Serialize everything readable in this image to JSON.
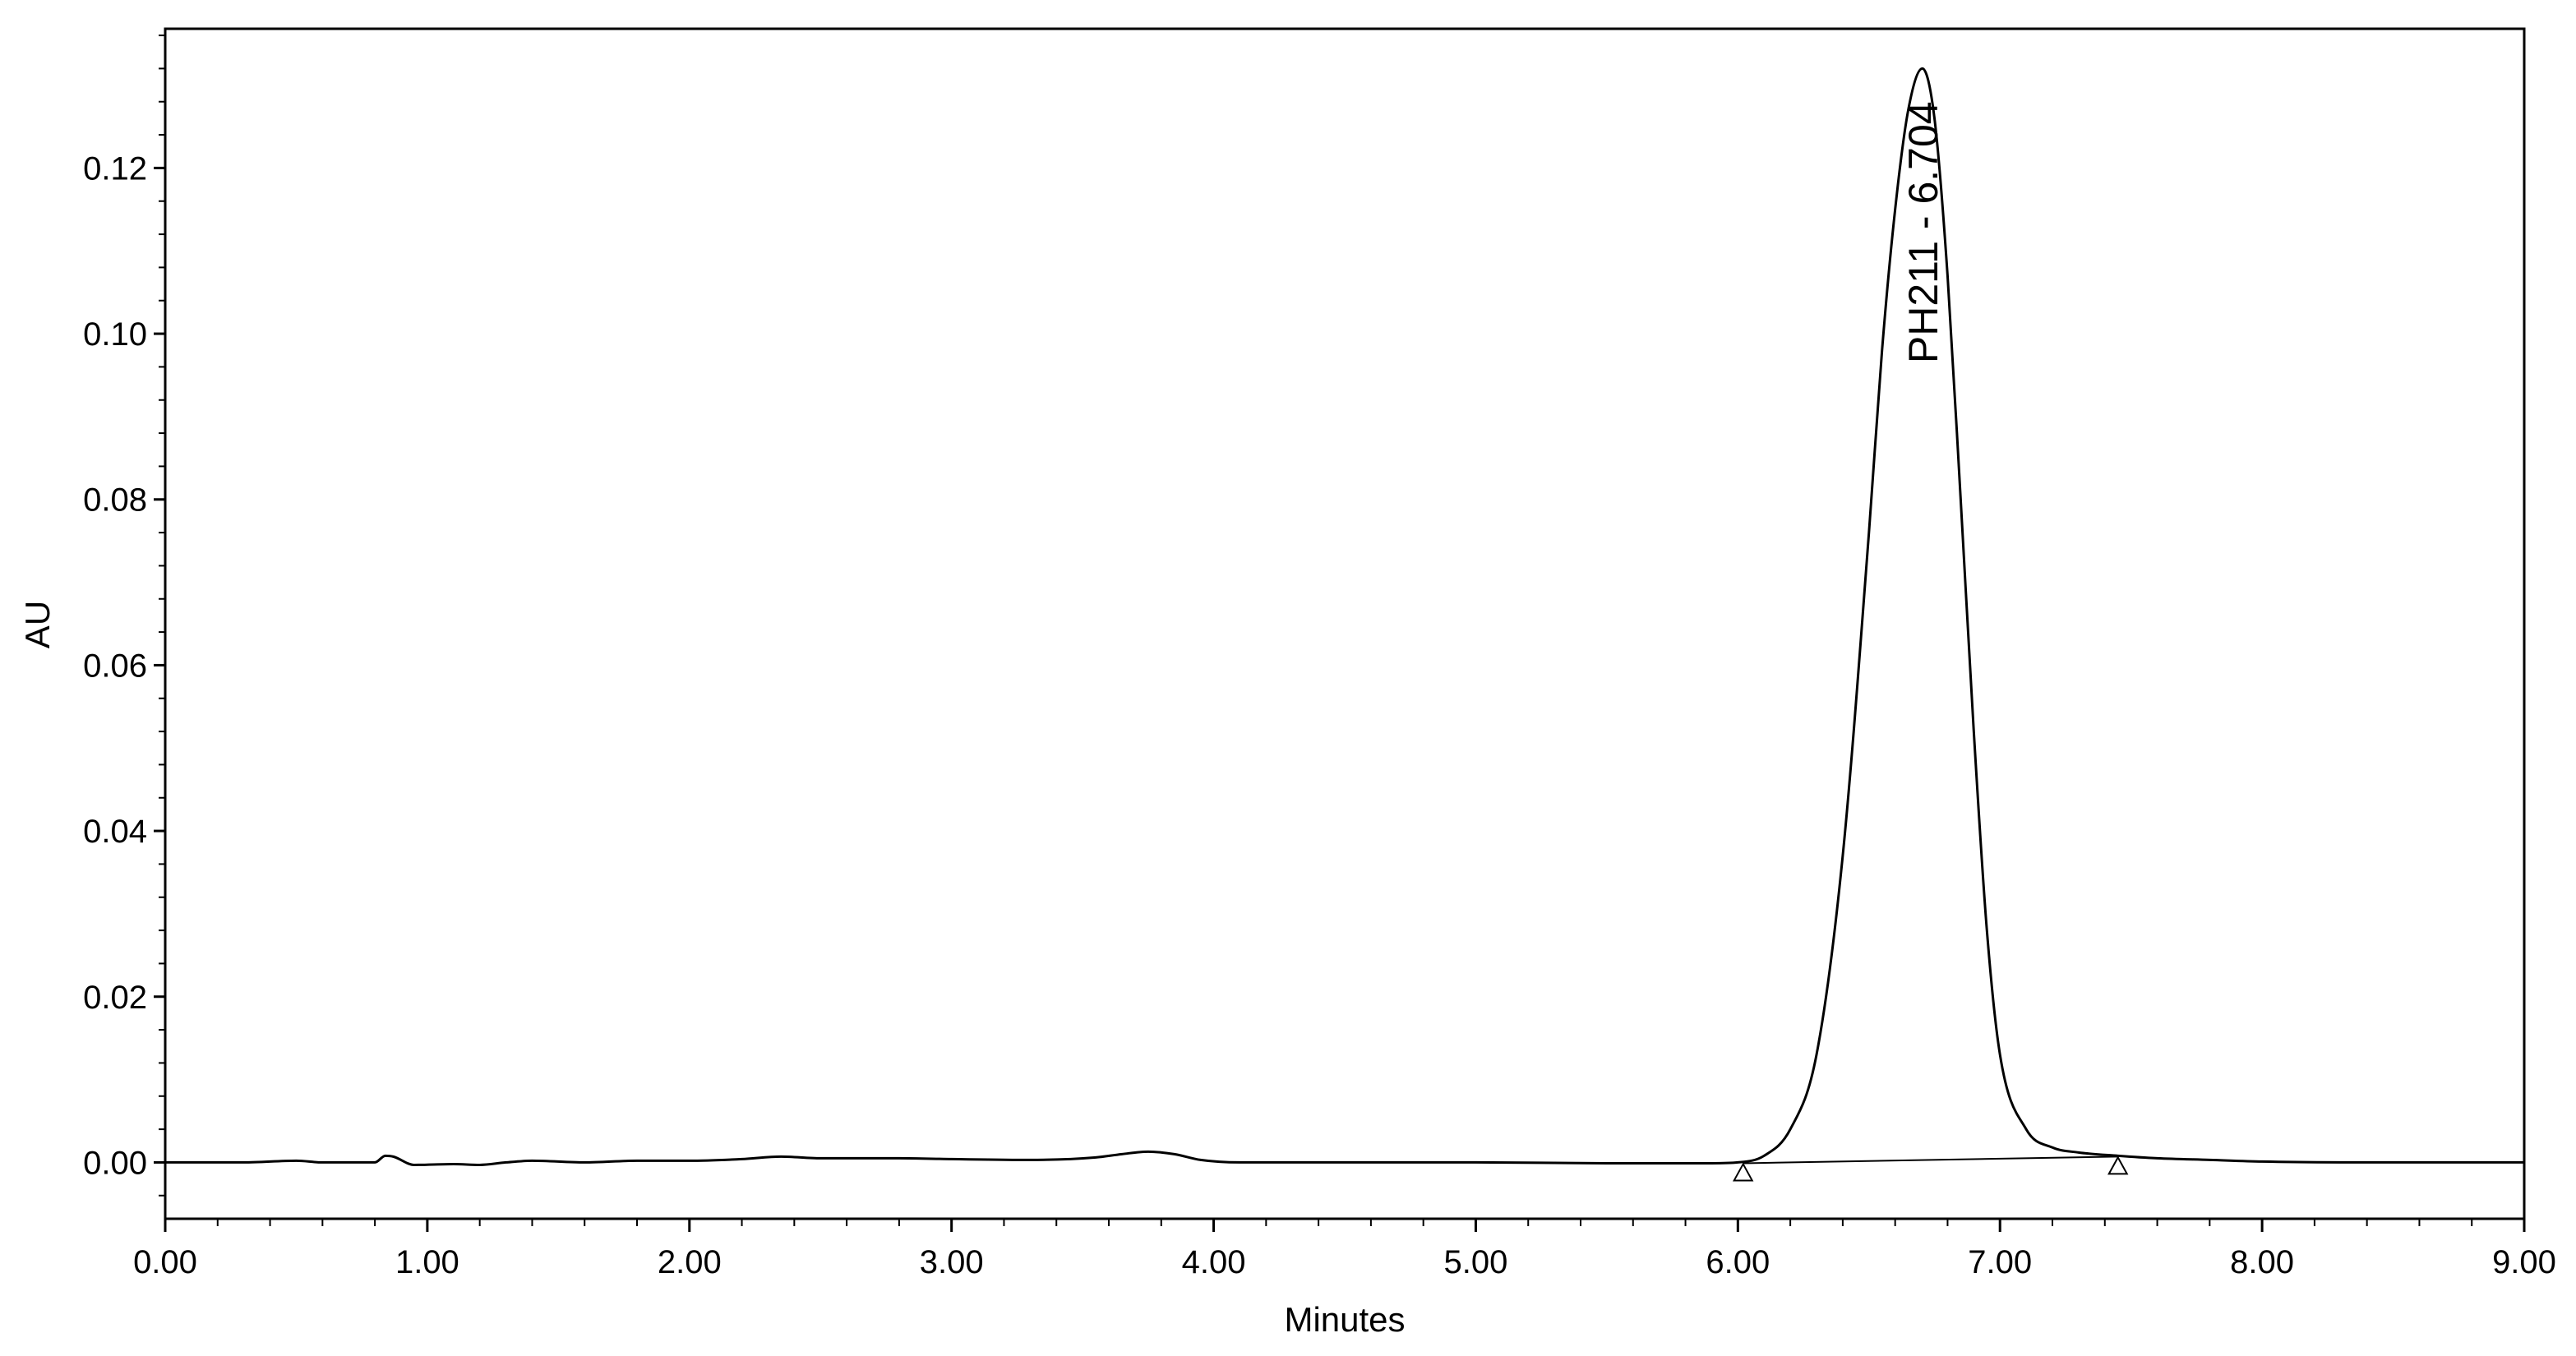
{
  "chart_data": {
    "type": "line",
    "title": "",
    "xlabel": "Minutes",
    "ylabel": "AU",
    "xlim": [
      0,
      9
    ],
    "ylim": [
      -0.0068,
      0.1368
    ],
    "x_ticks": [
      "0.00",
      "1.00",
      "2.00",
      "3.00",
      "4.00",
      "5.00",
      "6.00",
      "7.00",
      "8.00",
      "9.00"
    ],
    "y_ticks": [
      "0.00",
      "0.02",
      "0.04",
      "0.06",
      "0.08",
      "0.10",
      "0.12"
    ],
    "grid": false,
    "series": [
      {
        "x": [
          0.0,
          0.3,
          0.5,
          0.6,
          0.8,
          0.84,
          0.87,
          0.95,
          1.1,
          1.2,
          1.3,
          1.4,
          1.6,
          1.8,
          2.0,
          2.2,
          2.35,
          2.5,
          2.8,
          3.0,
          3.3,
          3.55,
          3.65,
          3.75,
          3.85,
          3.95,
          4.1,
          4.5,
          5.0,
          5.5,
          5.9,
          6.0,
          6.1,
          6.2,
          6.3,
          6.4,
          6.5,
          6.55,
          6.6,
          6.65,
          6.704,
          6.75,
          6.8,
          6.85,
          6.9,
          6.95,
          7.0,
          7.1,
          7.2,
          7.3,
          7.45,
          7.6,
          7.8,
          8.0,
          8.5,
          9.0
        ],
        "y": [
          0.0,
          0.0,
          0.0002,
          0.0,
          0.0,
          0.0008,
          0.0007,
          -0.0003,
          -0.0002,
          -0.0003,
          0.0,
          0.0002,
          0.0,
          0.0002,
          0.0002,
          0.0004,
          0.0007,
          0.0005,
          0.0005,
          0.0004,
          0.0003,
          0.0006,
          0.001,
          0.0013,
          0.001,
          0.0003,
          0.0,
          0.0,
          0.0,
          -0.0001,
          -0.0001,
          0.0,
          0.0008,
          0.004,
          0.013,
          0.037,
          0.076,
          0.098,
          0.115,
          0.127,
          0.132,
          0.126,
          0.107,
          0.08,
          0.052,
          0.028,
          0.013,
          0.004,
          0.0018,
          0.0012,
          0.0008,
          0.0005,
          0.0003,
          0.0001,
          0.0,
          0.0
        ]
      }
    ],
    "baseline": {
      "x": [
        6.02,
        7.45
      ],
      "y": [
        -0.0001,
        0.0007
      ]
    },
    "markers": [
      {
        "x": 6.02,
        "y": -0.0001,
        "symbol": "triangle"
      },
      {
        "x": 7.45,
        "y": 0.0007,
        "symbol": "triangle"
      }
    ],
    "annotations": [
      {
        "text": "PH211 - 6.704",
        "x": 6.704,
        "y": 0.132,
        "rotation": -90
      }
    ]
  }
}
